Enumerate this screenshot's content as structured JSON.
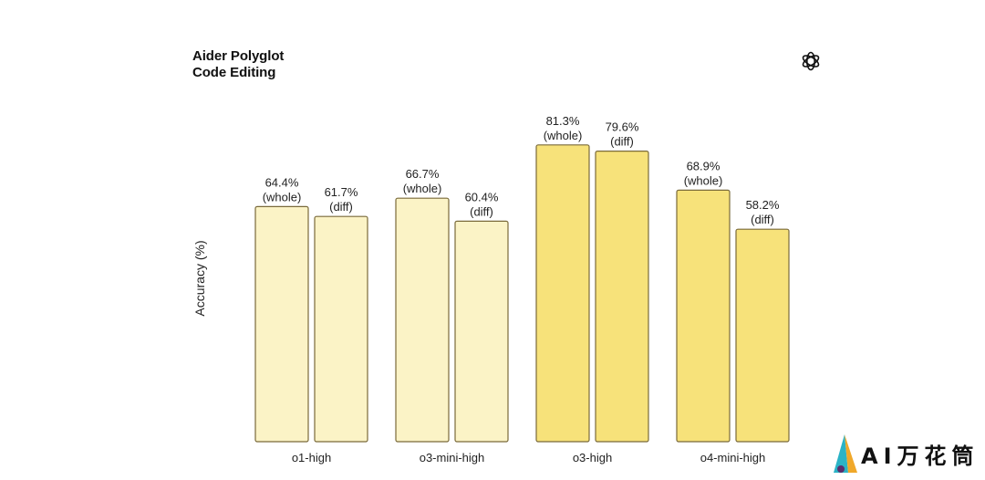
{
  "chart_data": {
    "type": "bar",
    "title_lines": [
      "Aider Polyglot",
      "Code Editing"
    ],
    "xlabel": "",
    "ylabel": "Accuracy (%)",
    "ylim": [
      0,
      100
    ],
    "grid": false,
    "categories": [
      "o1-high",
      "o3-mini-high",
      "o3-high",
      "o4-mini-high"
    ],
    "bars": [
      [
        {
          "value": 64.4,
          "label": "64.4%",
          "mode": "(whole)"
        },
        {
          "value": 61.7,
          "label": "61.7%",
          "mode": "(diff)"
        }
      ],
      [
        {
          "value": 66.7,
          "label": "66.7%",
          "mode": "(whole)"
        },
        {
          "value": 60.4,
          "label": "60.4%",
          "mode": "(diff)"
        }
      ],
      [
        {
          "value": 81.3,
          "label": "81.3%",
          "mode": "(whole)"
        },
        {
          "value": 79.6,
          "label": "79.6%",
          "mode": "(diff)"
        }
      ],
      [
        {
          "value": 68.9,
          "label": "68.9%",
          "mode": "(whole)"
        },
        {
          "value": 58.2,
          "label": "58.2%",
          "mode": "(diff)"
        }
      ]
    ],
    "colors": {
      "light_fill": "#fbf3c6",
      "bright_fill": "#f7e27a",
      "stroke": "#7a6a3a"
    },
    "category_color": [
      "light_fill",
      "light_fill",
      "bright_fill",
      "bright_fill"
    ]
  },
  "brand": {
    "logo_icon": "openai-knot-icon",
    "watermark_text": "AI万花筒",
    "watermark_icon": "sail-icon"
  }
}
